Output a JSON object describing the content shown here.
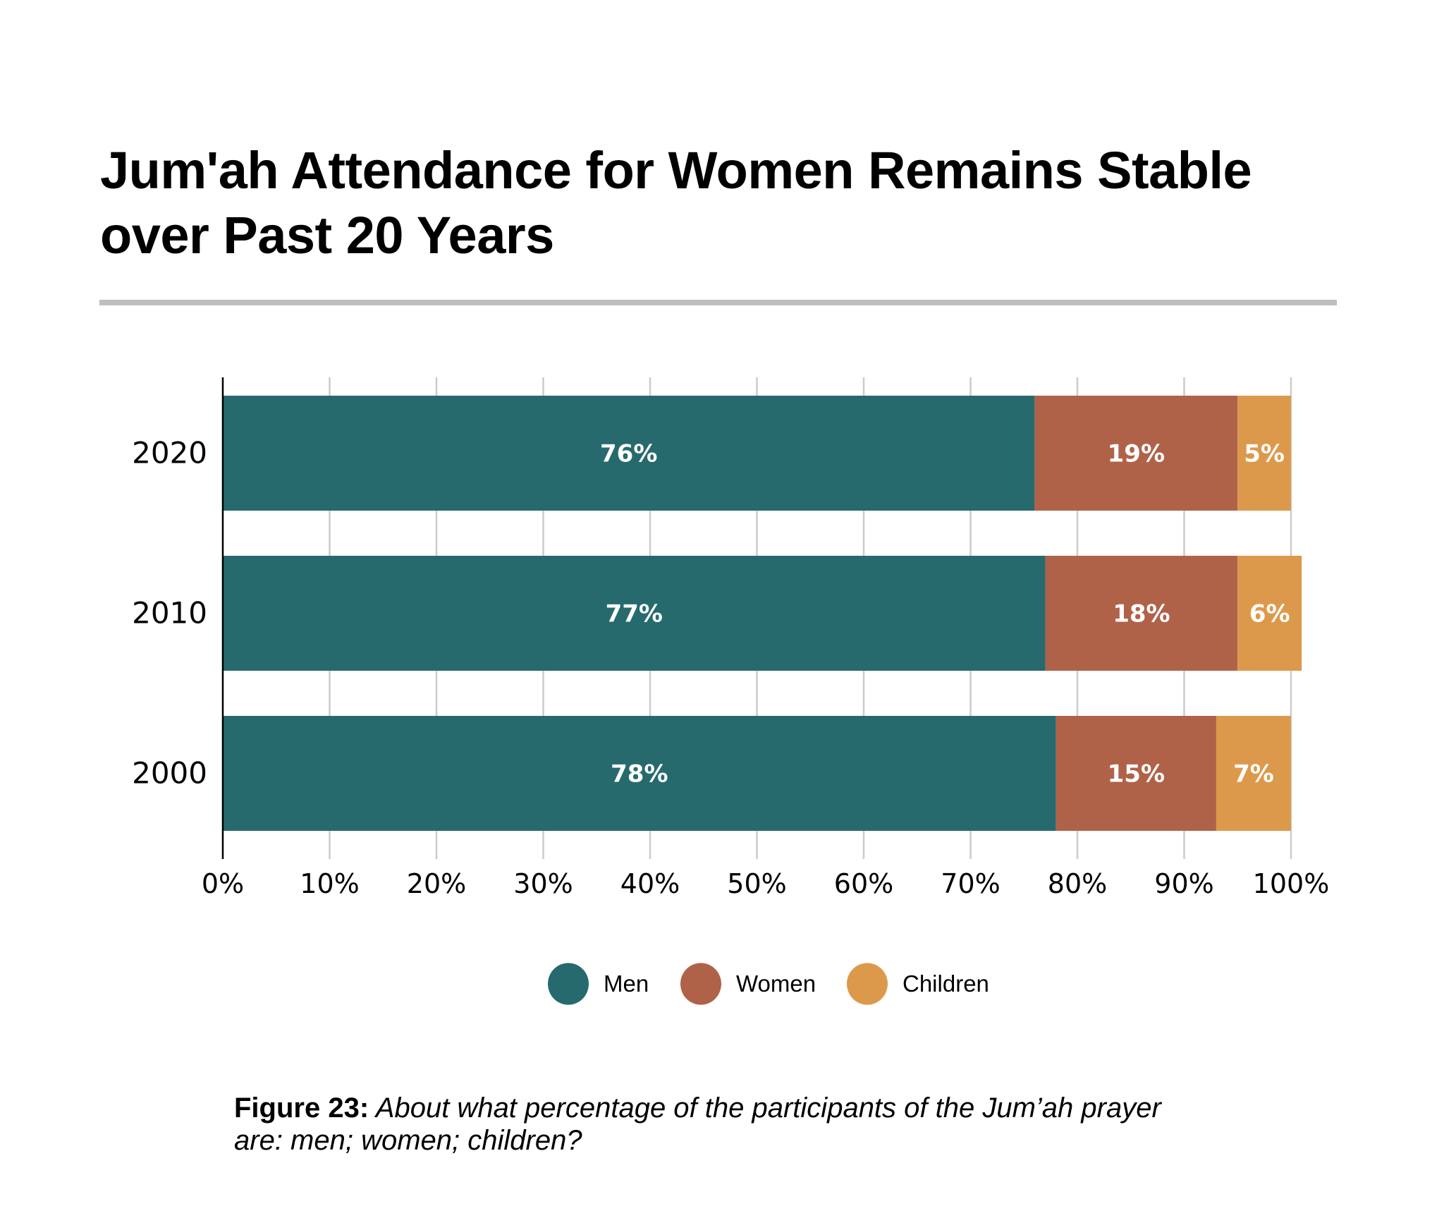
{
  "title": {
    "line1": "Jum'ah Attendance for Women Remains Stable",
    "line2": "over Past 20 Years"
  },
  "caption": {
    "label": "Figure 23:",
    "text_line1": " About what percentage of the participants of the Jum’ah prayer",
    "text_line2": "are: men; women; children?"
  },
  "colors": {
    "men": "#266A6E",
    "women": "#B06249",
    "children": "#DD994B",
    "grid": "#cccccc",
    "divider": "#bfbfbf"
  },
  "chart_data": {
    "type": "bar",
    "orientation": "horizontal",
    "stacked": true,
    "title": "Jum'ah Attendance for Women Remains Stable over Past 20 Years",
    "categories": [
      "2020",
      "2010",
      "2000"
    ],
    "series": [
      {
        "name": "Men",
        "values": [
          76,
          77,
          78
        ],
        "labels": [
          "76%",
          "77%",
          "78%"
        ]
      },
      {
        "name": "Women",
        "values": [
          19,
          18,
          15
        ],
        "labels": [
          "19%",
          "18%",
          "15%"
        ]
      },
      {
        "name": "Children",
        "values": [
          5,
          6,
          7
        ],
        "labels": [
          "5%",
          "6%",
          "7%"
        ]
      }
    ],
    "xlabel": "",
    "ylabel": "",
    "xlim": [
      0,
      100
    ],
    "x_ticks": [
      "0%",
      "10%",
      "20%",
      "30%",
      "40%",
      "50%",
      "60%",
      "70%",
      "80%",
      "90%",
      "100%"
    ],
    "grid": "vertical",
    "legend": {
      "position": "bottom-center",
      "entries": [
        "Men",
        "Women",
        "Children"
      ]
    }
  }
}
